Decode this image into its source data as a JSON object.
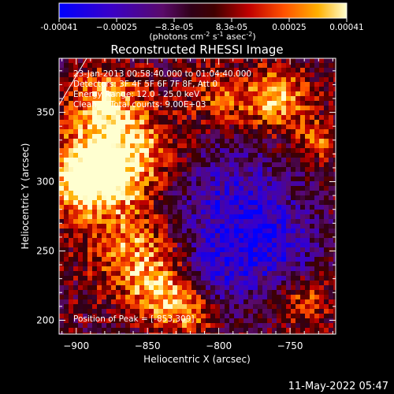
{
  "colorbar": {
    "ticks": [
      "-0.00041",
      "−0.00025",
      "−8.3e-05",
      "8.3e-05",
      "0.00025",
      "0.00041"
    ],
    "units_prefix": "(photons cm",
    "units_exp1": "-2",
    "units_mid1": " s",
    "units_exp2": "-1",
    "units_mid2": " asec",
    "units_exp3": "-2",
    "units_suffix": ")"
  },
  "chart_data": {
    "type": "heatmap",
    "title": "Reconstructed RHESSI Image",
    "xlabel": "Heliocentric X (arcsec)",
    "ylabel": "Heliocentric Y (arcsec)",
    "xlim": [
      -912,
      -718
    ],
    "ylim": [
      190,
      389
    ],
    "x_ticks": [
      -900,
      -850,
      -800,
      -750
    ],
    "x_tick_labels": [
      "−900",
      "−850",
      "−800",
      "−750"
    ],
    "y_ticks": [
      200,
      250,
      300,
      350
    ],
    "y_tick_labels": [
      "200",
      "250",
      "300",
      "350"
    ],
    "color_range": [
      -0.00041,
      0.00041
    ],
    "annotations": [
      "23-Jan-2013 00:58:40.000 to 01:04:40.000",
      "Detectors: 3F 4F 5F 6F 7F 8F, Att 0",
      "Energy Range: 12.0 - 25.0 keV",
      "Clean     Total counts: 9.00E+03"
    ],
    "peak_label": "Position of Peak = [-853,309]",
    "peak": [
      -853,
      309
    ]
  },
  "footer": {
    "date": "11-May-2022 05:47"
  }
}
